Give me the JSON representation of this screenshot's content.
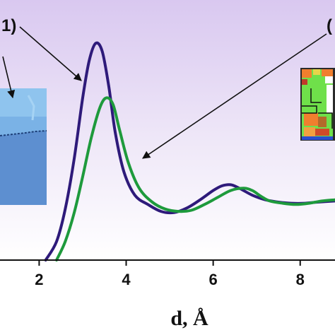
{
  "chart_data": {
    "type": "line",
    "xlabel": "d, Å",
    "xlim": [
      1.1,
      8.8
    ],
    "ylim": [
      0,
      1.0
    ],
    "xticks": [
      "2",
      "4",
      "6",
      "8"
    ],
    "grid": false,
    "legend": "none",
    "annotations": [
      "1)",
      "("
    ],
    "colors": {
      "background_top": "#d9c8f0",
      "background_bottom": "#ffffff"
    },
    "series": [
      {
        "color": "#2e1a7a",
        "x": [
          2.15,
          2.4,
          2.6,
          2.8,
          3.0,
          3.15,
          3.3,
          3.45,
          3.6,
          3.75,
          3.95,
          4.2,
          4.5,
          4.8,
          5.1,
          5.4,
          5.7,
          6.0,
          6.2,
          6.4,
          6.6,
          6.9,
          7.2,
          7.5,
          7.8,
          8.1,
          8.4,
          8.8
        ],
        "y": [
          0.0,
          0.08,
          0.22,
          0.43,
          0.7,
          0.86,
          0.935,
          0.9,
          0.75,
          0.55,
          0.38,
          0.28,
          0.24,
          0.21,
          0.205,
          0.225,
          0.26,
          0.3,
          0.32,
          0.325,
          0.31,
          0.28,
          0.26,
          0.25,
          0.245,
          0.245,
          0.25,
          0.255
        ]
      },
      {
        "color": "#1e9a3c",
        "x": [
          2.4,
          2.6,
          2.8,
          3.0,
          3.2,
          3.4,
          3.55,
          3.7,
          3.85,
          4.05,
          4.3,
          4.6,
          4.9,
          5.2,
          5.5,
          5.8,
          6.1,
          6.4,
          6.7,
          6.9,
          7.1,
          7.3,
          7.6,
          7.9,
          8.2,
          8.5,
          8.8
        ],
        "y": [
          0.0,
          0.08,
          0.2,
          0.36,
          0.53,
          0.66,
          0.7,
          0.67,
          0.56,
          0.42,
          0.31,
          0.25,
          0.22,
          0.21,
          0.215,
          0.24,
          0.27,
          0.3,
          0.31,
          0.3,
          0.275,
          0.255,
          0.245,
          0.24,
          0.245,
          0.255,
          0.26
        ]
      }
    ]
  }
}
